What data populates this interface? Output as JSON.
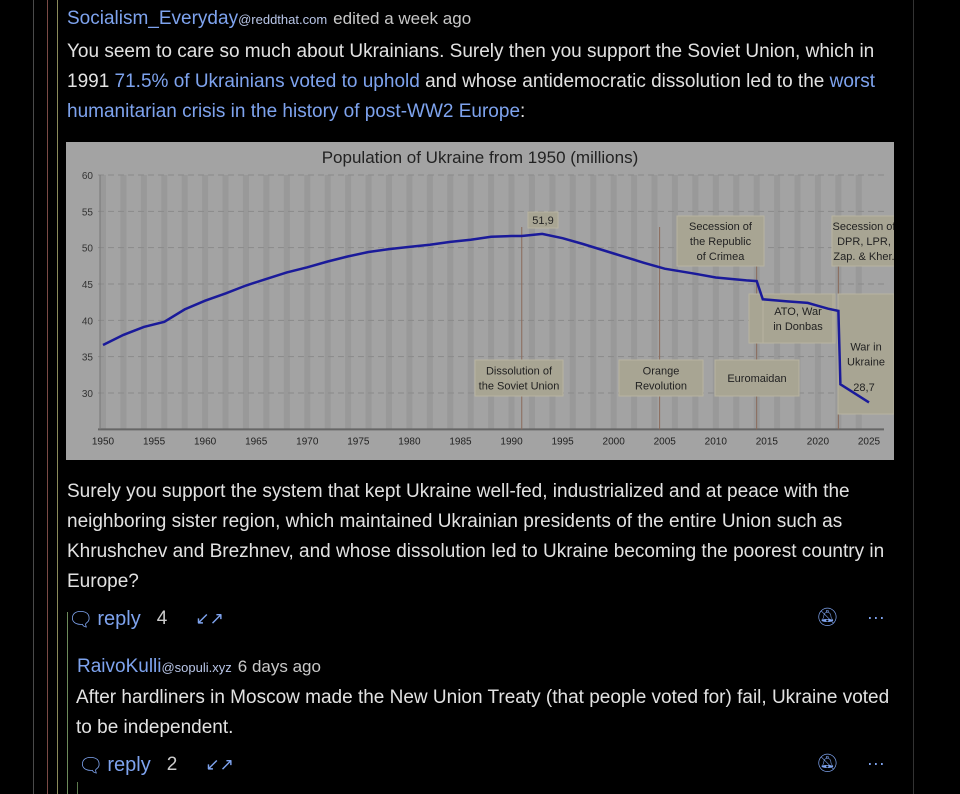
{
  "thread_colors": [
    "#555555",
    "#7a4a45",
    "#8a8a5a",
    "#6d8a5a",
    "#5d7a4d"
  ],
  "accent": "#7ea3ee",
  "comment": {
    "author": "Socialism_Everyday",
    "instance": "@reddthat.com",
    "time": "edited a week ago",
    "p1_a": "You seem to care so much about Ukrainians. Surely then you support the Soviet Union, which in 1991 ",
    "p1_link1": "71.5% of Ukrainians voted to uphold",
    "p1_b": " and whose antidemocratic dissolution led to the ",
    "p1_link2": "worst humanitarian crisis in the history of post-WW2 Europe",
    "p1_c": ":",
    "p2": "Surely you support the system that kept Ukraine well-fed, industrialized and at peace with the neighboring sister region, which maintained Ukrainian presidents of the entire Union such as Khrushchev and Brezhnev, and whose dissolution led to Ukraine becoming the poorest country in Europe?",
    "reply_label": "reply",
    "reply_count": "4"
  },
  "reply": {
    "author": "RaivoKulli",
    "instance": "@sopuli.xyz",
    "time": "6 days ago",
    "text": "After hardliners in Moscow made the New Union Treaty (that people voted for) fail, Ukraine voted to be independent.",
    "reply_label": "reply",
    "reply_count": "2"
  },
  "icons": {
    "reply": "speech-bubble-icon",
    "collapse": "collapse-arrows-icon",
    "mute": "bell-off-icon",
    "more": "ellipsis-icon"
  },
  "chart_data": {
    "type": "line",
    "title": "Population of Ukraine from 1950 (millions)",
    "x_ticks": [
      1950,
      1955,
      1960,
      1965,
      1970,
      1975,
      1980,
      1985,
      1990,
      1995,
      2000,
      2005,
      2010,
      2015,
      2020,
      2025
    ],
    "y_ticks": [
      30,
      35,
      40,
      45,
      50,
      55,
      60
    ],
    "xlim": [
      1950,
      2025
    ],
    "ylim": [
      25,
      60
    ],
    "grid": true,
    "line_color": "#1a1a9a",
    "x": [
      1950,
      1952,
      1954,
      1956,
      1958,
      1960,
      1962,
      1964,
      1966,
      1968,
      1970,
      1972,
      1974,
      1976,
      1978,
      1980,
      1982,
      1984,
      1986,
      1988,
      1990,
      1991,
      1993,
      1995,
      1997,
      2000,
      2003,
      2005,
      2008,
      2010,
      2013,
      2014,
      2014.6,
      2017,
      2019,
      2020,
      2021,
      2022,
      2022.2,
      2025
    ],
    "y": [
      36.6,
      38,
      39.1,
      39.8,
      41.5,
      42.7,
      43.7,
      44.8,
      45.7,
      46.6,
      47.3,
      48.1,
      48.8,
      49.4,
      49.8,
      50.1,
      50.4,
      50.8,
      51.1,
      51.5,
      51.6,
      51.6,
      51.9,
      51.3,
      50.5,
      49.2,
      47.9,
      47.1,
      46.4,
      45.9,
      45.5,
      45.4,
      42.9,
      42.6,
      42.4,
      42.0,
      41.6,
      41.3,
      31.2,
      28.7
    ],
    "point_labels": [
      {
        "x": 1993,
        "text": "51,9"
      },
      {
        "x": 2025,
        "text": "28,7"
      }
    ],
    "events": [
      {
        "year": 1991,
        "label": "Dissolution of the Soviet Union"
      },
      {
        "year": 2004.5,
        "label": "Orange Revolution"
      },
      {
        "year": 2014,
        "label": "Euromaidan"
      },
      {
        "year": 2014.3,
        "label": "Secession of the Republic of Crimea"
      },
      {
        "year": 2022,
        "label": "Secession of DPR, LPR, Zap. & Kher."
      }
    ],
    "periods": [
      {
        "from": 2014,
        "to": 2022,
        "label": "ATO, War in Donbas"
      },
      {
        "from": 2022,
        "to": 2025,
        "label": "War in Ukraine"
      }
    ]
  }
}
